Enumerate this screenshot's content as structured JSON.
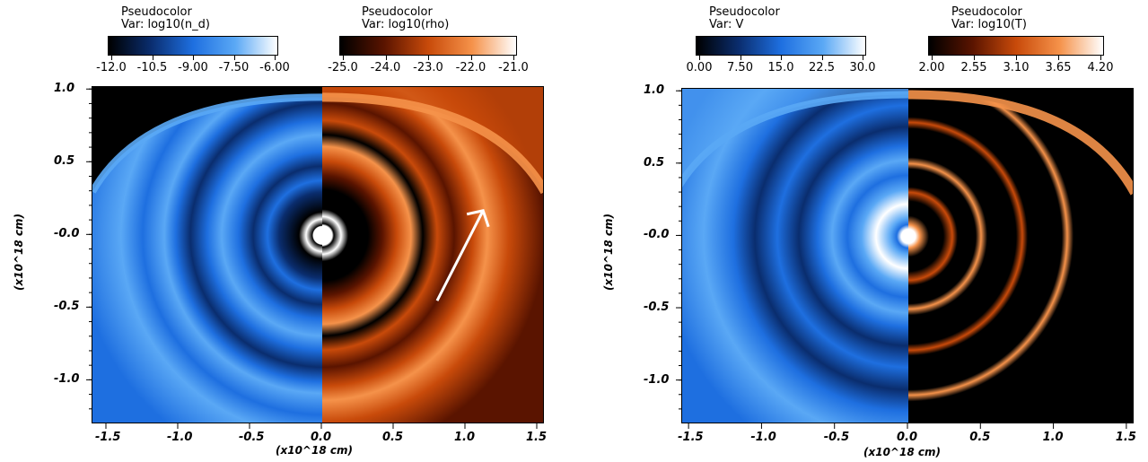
{
  "chart_data": [
    {
      "type": "heatmap",
      "xlabel": "(x10^18 cm)",
      "ylabel": "(x10^18 cm)",
      "xlim": [
        -1.6,
        1.55
      ],
      "ylim": [
        -1.3,
        1.02
      ],
      "xticks": [
        "-1.5",
        "-1.0",
        "-0.5",
        "0.0",
        "0.5",
        "1.0",
        "1.5"
      ],
      "yticks": [
        "1.0",
        "0.5",
        "-0.0",
        "-0.5",
        "-1.0"
      ],
      "fields": [
        {
          "title": "Pseudocolor",
          "var": "Var: log10(n_d)",
          "side": "left",
          "colormap": [
            "#000000",
            "#0a2d6e",
            "#1e6fe0",
            "#5aa8f5",
            "#ffffff"
          ],
          "range": [
            -12.0,
            -6.0
          ],
          "ticks": [
            "-12.0",
            "-10.5",
            "-9.00",
            "-7.50",
            "-6.00"
          ]
        },
        {
          "title": "Pseudocolor",
          "var": "Var: log10(rho)",
          "side": "right",
          "colormap": [
            "#000000",
            "#5a1400",
            "#c84a0a",
            "#f5924a",
            "#ffffff"
          ],
          "range": [
            -25.0,
            -21.0
          ],
          "ticks": [
            "-25.0",
            "-24.0",
            "-23.0",
            "-22.0",
            "-21.0"
          ]
        }
      ],
      "annotations": [
        "white arrow pointing up-right along shell"
      ]
    },
    {
      "type": "heatmap",
      "xlabel": "(x10^18 cm)",
      "ylabel": "(x10^18 cm)",
      "xlim": [
        -1.55,
        1.55
      ],
      "ylim": [
        -1.3,
        1.02
      ],
      "xticks": [
        "-1.5",
        "-1.0",
        "-0.5",
        "0.0",
        "0.5",
        "1.0",
        "1.5"
      ],
      "yticks": [
        "1.0",
        "0.5",
        "-0.0",
        "-0.5",
        "-1.0"
      ],
      "fields": [
        {
          "title": "Pseudocolor",
          "var": "Var: V",
          "side": "left",
          "colormap": [
            "#000000",
            "#0a2d6e",
            "#1e6fe0",
            "#5aa8f5",
            "#ffffff"
          ],
          "range": [
            0.0,
            30.0
          ],
          "ticks": [
            "0.00",
            "7.50",
            "15.0",
            "22.5",
            "30.0"
          ]
        },
        {
          "title": "Pseudocolor",
          "var": "Var: log10(T)",
          "side": "right",
          "colormap": [
            "#000000",
            "#5a1400",
            "#c84a0a",
            "#f5924a",
            "#ffffff"
          ],
          "range": [
            2.0,
            4.2
          ],
          "ticks": [
            "2.00",
            "2.55",
            "3.10",
            "3.65",
            "4.20"
          ]
        }
      ]
    }
  ]
}
